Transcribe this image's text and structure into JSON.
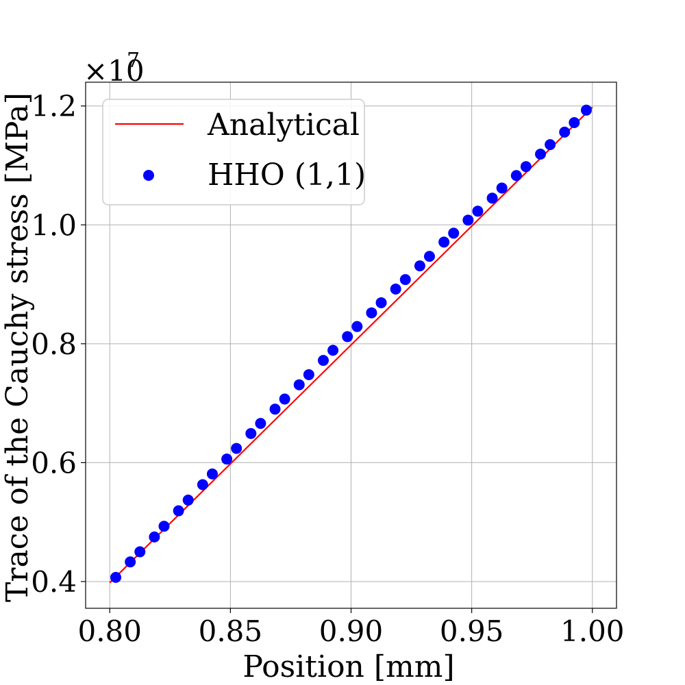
{
  "chart_data": {
    "type": "scatter",
    "title": "",
    "xlabel": "Position [mm]",
    "ylabel": "Trace of the Cauchy stress [MPa]",
    "xlim": [
      0.79,
      1.01
    ],
    "ylim": [
      3.55,
      12.4
    ],
    "y_multiplier_label": "×10",
    "y_multiplier_exponent": "7",
    "grid": true,
    "legend_position": "upper-left",
    "xticks": [
      0.8,
      0.85,
      0.9,
      0.95,
      1.0
    ],
    "xtick_labels": [
      "0.80",
      "0.85",
      "0.90",
      "0.95",
      "1.00"
    ],
    "yticks": [
      4,
      6,
      8,
      10,
      12
    ],
    "ytick_labels": [
      "0.4",
      "0.6",
      "0.8",
      "1.0",
      "1.2"
    ],
    "series": [
      {
        "name": "Analytical",
        "kind": "line",
        "color": "#ff0000",
        "x": [
          0.8,
          1.0
        ],
        "y": [
          3.98,
          11.98
        ]
      },
      {
        "name": "HHO (1,1)",
        "kind": "scatter",
        "color": "#0000ff",
        "x": [
          0.8025,
          0.8085,
          0.8125,
          0.8185,
          0.8225,
          0.8285,
          0.8325,
          0.8385,
          0.8425,
          0.8485,
          0.8525,
          0.8585,
          0.8625,
          0.8685,
          0.8725,
          0.8785,
          0.8825,
          0.8885,
          0.8925,
          0.8985,
          0.9025,
          0.9085,
          0.9125,
          0.9185,
          0.9225,
          0.9285,
          0.9325,
          0.9385,
          0.9425,
          0.9485,
          0.9525,
          0.9585,
          0.9625,
          0.9685,
          0.9725,
          0.9785,
          0.9825,
          0.9885,
          0.9925,
          0.9975
        ],
        "y": [
          4.07,
          4.33,
          4.5,
          4.75,
          4.93,
          5.19,
          5.37,
          5.63,
          5.81,
          6.06,
          6.24,
          6.49,
          6.66,
          6.9,
          7.07,
          7.31,
          7.48,
          7.72,
          7.89,
          8.12,
          8.29,
          8.52,
          8.69,
          8.92,
          9.08,
          9.31,
          9.47,
          9.71,
          9.86,
          10.08,
          10.23,
          10.45,
          10.62,
          10.83,
          10.98,
          11.19,
          11.35,
          11.56,
          11.72,
          11.93
        ]
      }
    ]
  }
}
